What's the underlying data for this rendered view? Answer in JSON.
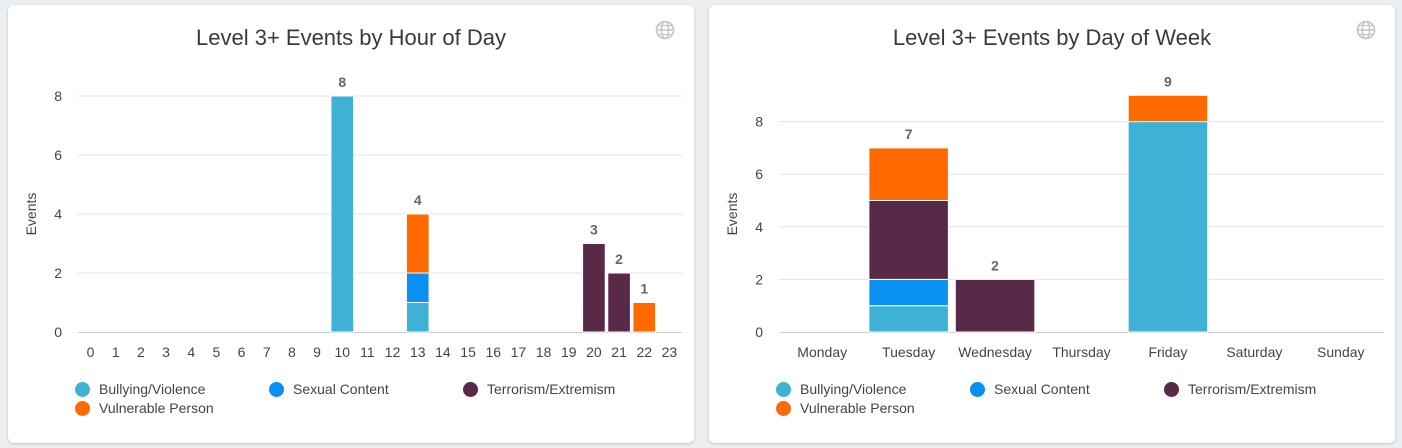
{
  "colors": {
    "bullying": "#3eb1d6",
    "sexual": "#0a8ff2",
    "terrorism": "#592a48",
    "vulnerable": "#ff6a00",
    "grid": "#e3e3e3",
    "axis": "#cccccc",
    "text": "#444444",
    "total_label": "#666666"
  },
  "legend": [
    {
      "key": "bullying",
      "label": "Bullying/Violence"
    },
    {
      "key": "sexual",
      "label": "Sexual Content"
    },
    {
      "key": "terrorism",
      "label": "Terrorism/Extremism"
    },
    {
      "key": "vulnerable",
      "label": "Vulnerable Person"
    }
  ],
  "chart_data": [
    {
      "type": "bar",
      "stacked": true,
      "title": "Level 3+ Events by Hour of Day",
      "xlabel": "",
      "ylabel": "Events",
      "ylim": [
        0,
        8
      ],
      "yticks": [
        0,
        2,
        4,
        6,
        8
      ],
      "grid": true,
      "legend_position": "bottom",
      "categories": [
        "0",
        "1",
        "2",
        "3",
        "4",
        "5",
        "6",
        "7",
        "8",
        "9",
        "10",
        "11",
        "12",
        "13",
        "14",
        "15",
        "16",
        "17",
        "18",
        "19",
        "20",
        "21",
        "22",
        "23"
      ],
      "series": [
        {
          "name": "Bullying/Violence",
          "key": "bullying",
          "values": [
            0,
            0,
            0,
            0,
            0,
            0,
            0,
            0,
            0,
            0,
            8,
            0,
            0,
            1,
            0,
            0,
            0,
            0,
            0,
            0,
            0,
            0,
            0,
            0
          ]
        },
        {
          "name": "Sexual Content",
          "key": "sexual",
          "values": [
            0,
            0,
            0,
            0,
            0,
            0,
            0,
            0,
            0,
            0,
            0,
            0,
            0,
            1,
            0,
            0,
            0,
            0,
            0,
            0,
            0,
            0,
            0,
            0
          ]
        },
        {
          "name": "Terrorism/Extremism",
          "key": "terrorism",
          "values": [
            0,
            0,
            0,
            0,
            0,
            0,
            0,
            0,
            0,
            0,
            0,
            0,
            0,
            0,
            0,
            0,
            0,
            0,
            0,
            0,
            3,
            2,
            0,
            0
          ]
        },
        {
          "name": "Vulnerable Person",
          "key": "vulnerable",
          "values": [
            0,
            0,
            0,
            0,
            0,
            0,
            0,
            0,
            0,
            0,
            0,
            0,
            0,
            2,
            0,
            0,
            0,
            0,
            0,
            0,
            0,
            0,
            1,
            0
          ]
        }
      ],
      "totals": [
        null,
        null,
        null,
        null,
        null,
        null,
        null,
        null,
        null,
        null,
        8,
        null,
        null,
        4,
        null,
        null,
        null,
        null,
        null,
        null,
        3,
        2,
        1,
        null
      ]
    },
    {
      "type": "bar",
      "stacked": true,
      "title": "Level 3+ Events by Day of Week",
      "xlabel": "",
      "ylabel": "Events",
      "ylim": [
        0,
        9
      ],
      "yticks": [
        0,
        2,
        4,
        6,
        8
      ],
      "grid": true,
      "legend_position": "bottom",
      "categories": [
        "Monday",
        "Tuesday",
        "Wednesday",
        "Thursday",
        "Friday",
        "Saturday",
        "Sunday"
      ],
      "series": [
        {
          "name": "Bullying/Violence",
          "key": "bullying",
          "values": [
            0,
            1,
            0,
            0,
            8,
            0,
            0
          ]
        },
        {
          "name": "Sexual Content",
          "key": "sexual",
          "values": [
            0,
            1,
            0,
            0,
            0,
            0,
            0
          ]
        },
        {
          "name": "Terrorism/Extremism",
          "key": "terrorism",
          "values": [
            0,
            3,
            2,
            0,
            0,
            0,
            0
          ]
        },
        {
          "name": "Vulnerable Person",
          "key": "vulnerable",
          "values": [
            0,
            2,
            0,
            0,
            1,
            0,
            0
          ]
        }
      ],
      "totals": [
        null,
        7,
        2,
        null,
        9,
        null,
        null
      ]
    }
  ]
}
